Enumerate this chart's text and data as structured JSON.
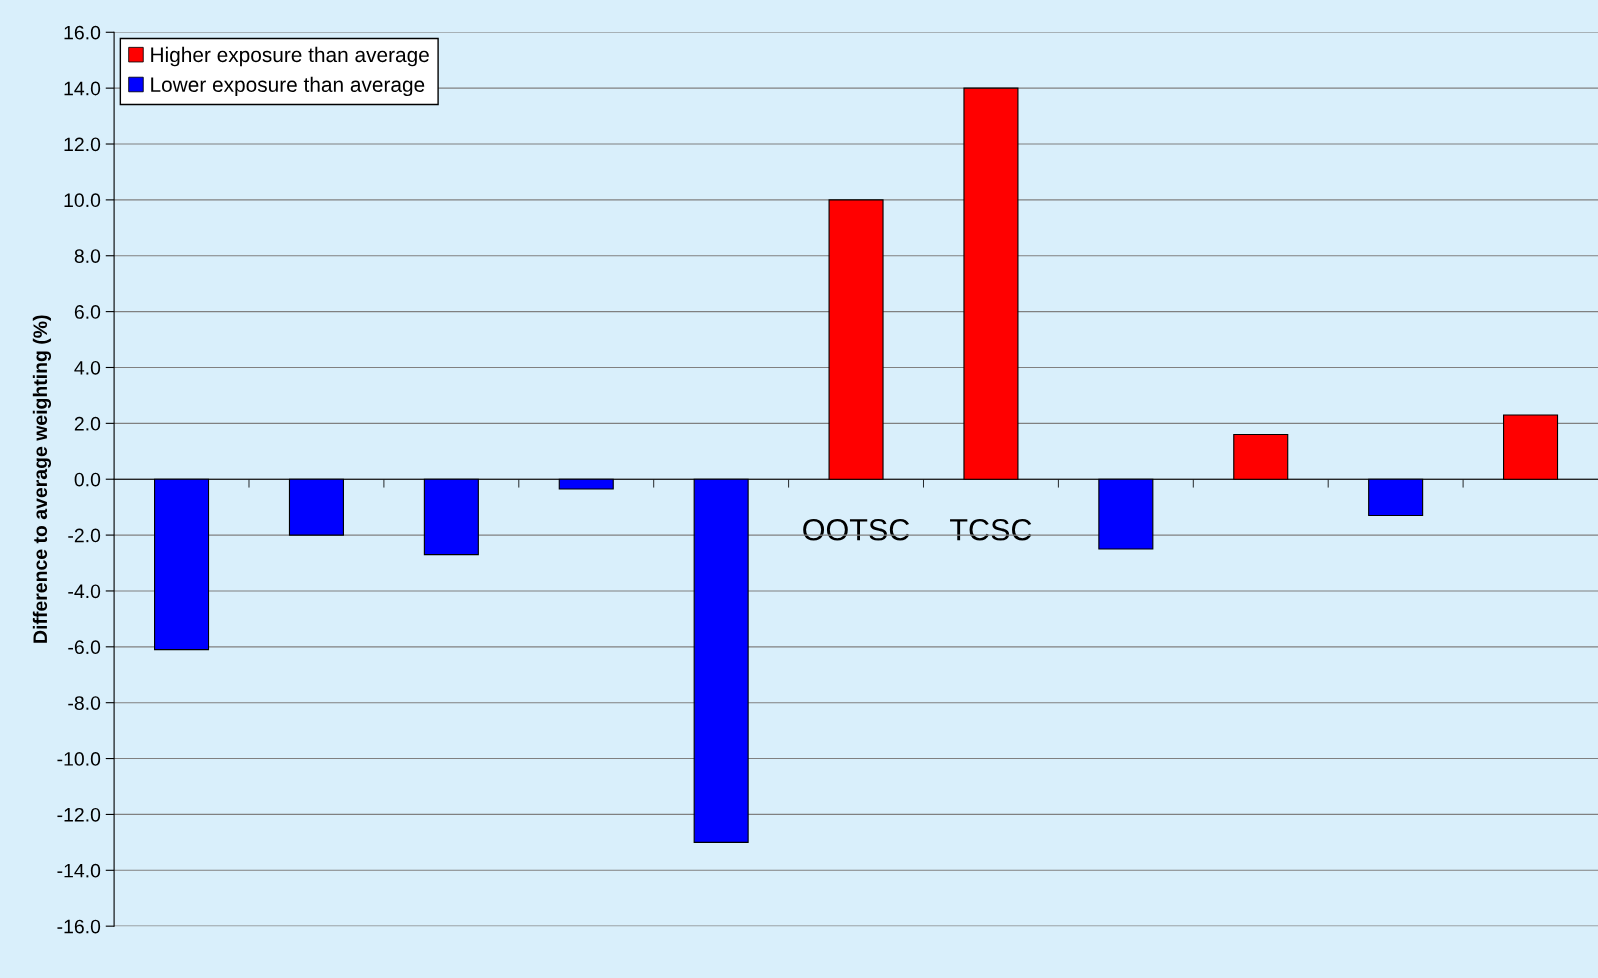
{
  "chart_data": {
    "type": "bar",
    "ylabel": "Difference to average weighting (%)",
    "categories": [
      null,
      null,
      null,
      null,
      null,
      "OOTSC",
      "TCSC",
      null,
      null,
      null,
      null
    ],
    "series": [
      {
        "name": "Higher exposure than average",
        "color": "#ff0000",
        "values": [
          null,
          null,
          null,
          null,
          null,
          10.0,
          14.0,
          null,
          1.6,
          null,
          2.3
        ]
      },
      {
        "name": "Lower exposure than average",
        "color": "#0000ff",
        "values": [
          -6.1,
          -2.0,
          -2.7,
          -0.35,
          -13.0,
          null,
          null,
          -2.5,
          null,
          -1.3,
          null
        ]
      }
    ],
    "ylim": [
      -16,
      16
    ],
    "yticks": [
      {
        "value": -16,
        "label": "-16.0"
      },
      {
        "value": -14,
        "label": "-14.0"
      },
      {
        "value": -12,
        "label": "-12.0"
      },
      {
        "value": -10,
        "label": "-10.0"
      },
      {
        "value": -8,
        "label": "-8.0"
      },
      {
        "value": -6,
        "label": "-6.0"
      },
      {
        "value": -4,
        "label": "-4.0"
      },
      {
        "value": -2,
        "label": "-2.0"
      },
      {
        "value": 0,
        "label": "0.0"
      },
      {
        "value": 2,
        "label": "2.0"
      },
      {
        "value": 4,
        "label": "4.0"
      },
      {
        "value": 6,
        "label": "6.0"
      },
      {
        "value": 8,
        "label": "8.0"
      },
      {
        "value": 10,
        "label": "10.0"
      },
      {
        "value": 12,
        "label": "12.0"
      },
      {
        "value": 14,
        "label": "14.0"
      },
      {
        "value": 16,
        "label": "16.0"
      }
    ],
    "grid": "y",
    "legend": "top left"
  }
}
